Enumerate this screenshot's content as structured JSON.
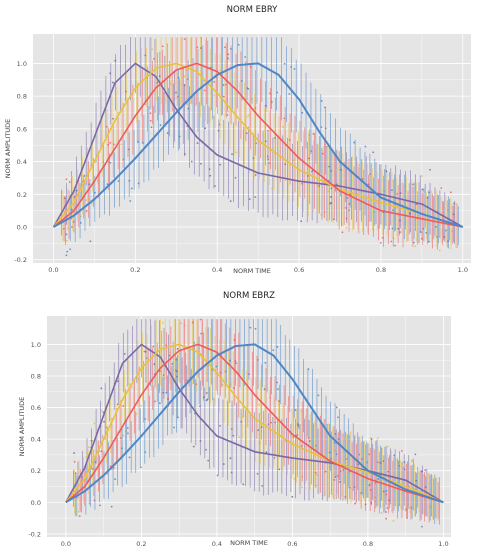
{
  "chart_data": [
    {
      "type": "line",
      "title": "NORM EBRY",
      "xlabel": "NORM TIME",
      "ylabel": "NORM AMPLITUDE",
      "xlim": [
        -0.05,
        1.02
      ],
      "ylim": [
        -0.22,
        1.18
      ],
      "xticks": [
        0.0,
        0.2,
        0.4,
        0.6,
        0.8,
        1.0
      ],
      "xtick_labels": [
        "0.0",
        "0.2",
        "0.4",
        "0.6",
        "0.8",
        "1.0"
      ],
      "yticks": [
        -0.2,
        0.0,
        0.2,
        0.4,
        0.6,
        0.8,
        1.0
      ],
      "ytick_labels": [
        "-0.2",
        "0.0",
        "0.2",
        "0.4",
        "0.6",
        "0.8",
        "1.0"
      ],
      "grid": true,
      "background": "#e5e5e5",
      "series": [
        {
          "color": "#7a68a6",
          "x": [
            0,
            0.05,
            0.1,
            0.15,
            0.2,
            0.25,
            0.3,
            0.35,
            0.4,
            0.5,
            0.6,
            0.7,
            0.8,
            0.9,
            1.0
          ],
          "y": [
            0,
            0.22,
            0.55,
            0.88,
            1.0,
            0.92,
            0.72,
            0.55,
            0.44,
            0.33,
            0.28,
            0.25,
            0.2,
            0.14,
            0
          ]
        },
        {
          "color": "#e8c13d",
          "x": [
            0,
            0.05,
            0.1,
            0.15,
            0.2,
            0.25,
            0.3,
            0.35,
            0.4,
            0.45,
            0.5,
            0.6,
            0.7,
            0.8,
            0.9,
            1.0
          ],
          "y": [
            0,
            0.15,
            0.4,
            0.65,
            0.85,
            0.97,
            1.0,
            0.95,
            0.82,
            0.67,
            0.53,
            0.35,
            0.23,
            0.15,
            0.08,
            0
          ]
        },
        {
          "color": "#f05a5a",
          "x": [
            0,
            0.05,
            0.1,
            0.15,
            0.2,
            0.25,
            0.3,
            0.35,
            0.4,
            0.45,
            0.5,
            0.6,
            0.7,
            0.8,
            0.9,
            1.0
          ],
          "y": [
            0,
            0.1,
            0.28,
            0.48,
            0.68,
            0.85,
            0.96,
            1.0,
            0.95,
            0.83,
            0.68,
            0.42,
            0.22,
            0.1,
            0.05,
            0
          ]
        },
        {
          "color": "#4f86c6",
          "x": [
            0,
            0.05,
            0.1,
            0.15,
            0.2,
            0.25,
            0.3,
            0.35,
            0.4,
            0.45,
            0.5,
            0.55,
            0.6,
            0.65,
            0.7,
            0.8,
            0.9,
            1.0
          ],
          "y": [
            0,
            0.07,
            0.17,
            0.29,
            0.42,
            0.56,
            0.7,
            0.83,
            0.93,
            0.99,
            1.0,
            0.93,
            0.78,
            0.58,
            0.4,
            0.18,
            0.08,
            0
          ]
        }
      ]
    },
    {
      "type": "line",
      "title": "NORM EBRZ",
      "xlabel": "NORM TIME",
      "ylabel": "NORM AMPLITUDE",
      "xlim": [
        -0.05,
        1.02
      ],
      "ylim": [
        -0.22,
        1.18
      ],
      "xticks": [
        0.0,
        0.2,
        0.4,
        0.6,
        0.8,
        1.0
      ],
      "xtick_labels": [
        "0.0",
        "0.2",
        "0.4",
        "0.6",
        "0.8",
        "1.0"
      ],
      "yticks": [
        -0.2,
        0.0,
        0.2,
        0.4,
        0.6,
        0.8,
        1.0
      ],
      "ytick_labels": [
        "-0.2",
        "0.0",
        "0.2",
        "0.4",
        "0.6",
        "0.8",
        "1.0"
      ],
      "grid": true,
      "background": "#e5e5e5",
      "series": [
        {
          "color": "#7a68a6",
          "x": [
            0,
            0.05,
            0.1,
            0.15,
            0.2,
            0.25,
            0.3,
            0.35,
            0.4,
            0.5,
            0.6,
            0.7,
            0.8,
            0.9,
            1.0
          ],
          "y": [
            0,
            0.22,
            0.55,
            0.88,
            1.0,
            0.92,
            0.72,
            0.55,
            0.42,
            0.32,
            0.28,
            0.25,
            0.2,
            0.14,
            0
          ]
        },
        {
          "color": "#e8c13d",
          "x": [
            0,
            0.05,
            0.1,
            0.15,
            0.2,
            0.25,
            0.3,
            0.35,
            0.4,
            0.45,
            0.5,
            0.6,
            0.7,
            0.8,
            0.9,
            1.0
          ],
          "y": [
            0,
            0.15,
            0.4,
            0.65,
            0.85,
            0.97,
            1.0,
            0.95,
            0.82,
            0.67,
            0.53,
            0.37,
            0.26,
            0.19,
            0.1,
            0
          ]
        },
        {
          "color": "#f05a5a",
          "x": [
            0,
            0.05,
            0.1,
            0.15,
            0.2,
            0.25,
            0.3,
            0.35,
            0.4,
            0.45,
            0.5,
            0.6,
            0.7,
            0.8,
            0.9,
            1.0
          ],
          "y": [
            0,
            0.1,
            0.28,
            0.48,
            0.68,
            0.85,
            0.96,
            1.0,
            0.95,
            0.83,
            0.68,
            0.43,
            0.26,
            0.15,
            0.07,
            0
          ]
        },
        {
          "color": "#4f86c6",
          "x": [
            0,
            0.05,
            0.1,
            0.15,
            0.2,
            0.25,
            0.3,
            0.35,
            0.4,
            0.45,
            0.5,
            0.55,
            0.6,
            0.65,
            0.7,
            0.8,
            0.9,
            1.0
          ],
          "y": [
            0,
            0.07,
            0.17,
            0.29,
            0.42,
            0.56,
            0.7,
            0.83,
            0.93,
            0.99,
            1.0,
            0.93,
            0.78,
            0.6,
            0.42,
            0.2,
            0.08,
            0
          ]
        }
      ]
    }
  ]
}
